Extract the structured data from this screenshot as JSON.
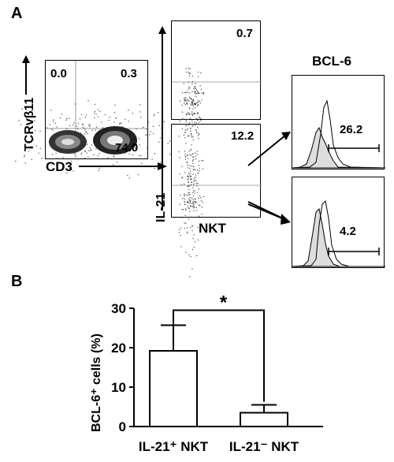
{
  "panels": {
    "a": "A",
    "b": "B"
  },
  "dotplot1": {
    "ylabel": "TCRvβ11",
    "xlabel": "CD3",
    "q_upper_left": "0.0",
    "q_upper_right": "0.3",
    "q_lower_right": "74.0"
  },
  "il21_plots": {
    "ylabel": "IL-21",
    "xlabel": "NKT",
    "top_value": "0.7",
    "bottom_value": "12.2"
  },
  "histograms": {
    "title": "BCL-6",
    "top_value": "26.2",
    "bottom_value": "4.2"
  },
  "chart_data": {
    "type": "bar",
    "ylabel": "BCL-6⁺ cells (%)",
    "ylim": [
      0,
      30
    ],
    "yticks": [
      "0",
      "10",
      "20",
      "30"
    ],
    "categories": [
      "IL-21⁺ NKT",
      "IL-21⁻ NKT"
    ],
    "values": [
      19.2,
      3.5
    ],
    "errors": [
      6.5,
      2.0
    ],
    "significance": "*"
  }
}
